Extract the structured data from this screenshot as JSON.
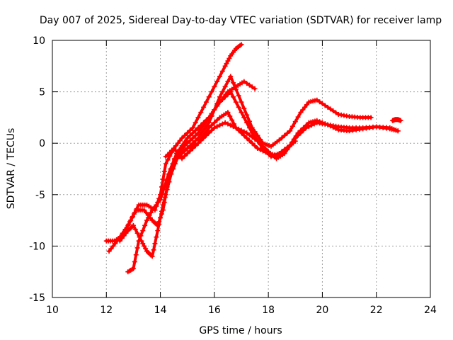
{
  "chart_data": {
    "type": "scatter",
    "title": "Day 007 of 2025, Sidereal Day-to-day VTEC variation (SDTVAR) for receiver lamp",
    "xlabel": "GPS time / hours",
    "ylabel": "SDTVAR / TECUs",
    "xlim": [
      10,
      24
    ],
    "ylim": [
      -15,
      10
    ],
    "x_ticks": [
      "10",
      "12",
      "14",
      "16",
      "18",
      "20",
      "22",
      "24"
    ],
    "y_ticks": [
      "-15",
      "-10",
      "-5",
      "0",
      "5",
      "10"
    ],
    "grid": true,
    "legend": "none",
    "marker": "+",
    "colors": {
      "series": "#ff0000",
      "grid": "#a0a0a0",
      "axes": "#000000"
    },
    "series": [
      {
        "name": "track-1",
        "x": [
          12.0,
          12.3,
          12.6,
          12.9,
          13.2,
          13.5,
          13.8,
          14.0,
          14.2,
          14.5,
          14.8,
          15.2,
          15.6,
          16.0,
          16.4,
          16.6,
          16.8,
          17.0
        ],
        "y": [
          -9.5,
          -9.5,
          -9.0,
          -7.5,
          -6.0,
          -6.0,
          -6.5,
          -5.0,
          -2.0,
          -0.5,
          0.5,
          1.5,
          3.5,
          5.5,
          7.5,
          8.5,
          9.2,
          9.6
        ]
      },
      {
        "name": "track-2",
        "x": [
          12.1,
          12.4,
          12.8,
          13.1,
          13.4,
          13.7,
          13.9,
          14.1,
          14.3,
          14.6,
          15.0,
          15.4,
          15.8,
          16.2,
          16.5,
          16.8,
          17.1,
          17.5
        ],
        "y": [
          -10.5,
          -9.5,
          -8.0,
          -6.5,
          -6.5,
          -7.5,
          -8.0,
          -6.5,
          -3.5,
          -1.0,
          0.5,
          1.5,
          2.5,
          4.0,
          5.0,
          5.5,
          6.0,
          5.3
        ]
      },
      {
        "name": "track-3",
        "x": [
          12.5,
          12.8,
          13.0,
          13.3,
          13.5,
          13.7,
          13.9,
          14.1,
          14.4,
          14.7,
          15.0,
          15.4,
          15.8,
          16.2,
          16.6,
          17.0,
          17.4,
          17.8,
          18.1,
          18.4,
          18.8,
          19.2,
          19.5,
          19.8,
          20.2,
          20.6,
          21.0,
          21.4,
          21.8
        ],
        "y": [
          -9.5,
          -8.5,
          -8.0,
          -9.5,
          -10.5,
          -11.0,
          -8.5,
          -6.0,
          -3.0,
          -1.0,
          -0.5,
          0.5,
          2.0,
          4.5,
          6.5,
          4.0,
          1.5,
          0.0,
          -0.3,
          0.3,
          1.2,
          3.0,
          4.0,
          4.2,
          3.5,
          2.8,
          2.6,
          2.5,
          2.5
        ]
      },
      {
        "name": "track-4",
        "x": [
          12.8,
          13.0,
          13.2,
          13.5,
          13.7,
          14.0,
          14.3,
          14.6,
          15.0,
          15.4,
          15.8,
          16.2,
          16.6,
          17.0,
          17.4,
          17.8,
          18.1,
          18.4,
          18.8,
          19.1,
          19.5,
          19.8,
          20.2,
          20.6,
          21.0,
          21.5,
          22.0,
          22.5,
          22.8
        ],
        "y": [
          -12.5,
          -12.2,
          -9.5,
          -7.5,
          -6.5,
          -5.5,
          -3.0,
          -1.0,
          0.0,
          1.0,
          2.5,
          4.0,
          5.0,
          3.0,
          1.0,
          -0.5,
          -1.3,
          -1.0,
          -0.2,
          1.0,
          2.0,
          2.2,
          1.8,
          1.3,
          1.2,
          1.4,
          1.6,
          1.5,
          1.2
        ]
      },
      {
        "name": "track-5",
        "x": [
          14.2,
          14.5,
          14.8,
          15.2,
          15.6,
          16.0,
          16.4,
          16.8,
          17.2,
          17.6,
          18.0,
          18.3,
          18.6,
          19.0,
          19.4,
          19.8,
          20.2,
          20.6,
          21.0,
          21.5,
          22.0,
          22.5,
          22.8
        ],
        "y": [
          -1.3,
          -0.5,
          -1.5,
          -0.5,
          0.5,
          1.5,
          2.0,
          1.5,
          1.0,
          0.2,
          -0.8,
          -1.5,
          -1.0,
          0.5,
          1.5,
          2.0,
          1.8,
          1.6,
          1.5,
          1.5,
          1.6,
          1.4,
          1.2
        ]
      },
      {
        "name": "track-6",
        "x": [
          14.6,
          15.0,
          15.4,
          15.8,
          16.2,
          16.5,
          16.8,
          17.2,
          17.6,
          18.0,
          18.3,
          18.7,
          19.0
        ],
        "y": [
          -1.5,
          -0.5,
          0.0,
          1.5,
          2.5,
          3.0,
          1.5,
          0.5,
          -0.5,
          -1.0,
          -1.2,
          -0.5,
          0.2
        ]
      },
      {
        "name": "track-7",
        "x": [
          22.6,
          22.7,
          22.8,
          22.9
        ],
        "y": [
          2.2,
          2.3,
          2.3,
          2.2
        ]
      }
    ]
  }
}
